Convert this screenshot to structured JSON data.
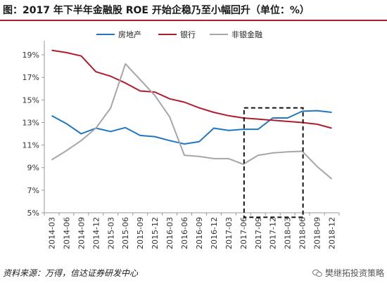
{
  "title": "图：2017 年下半年金融股 ROE 开始企稳乃至小幅回升（单位：%）",
  "source": "资料来源：万得，信达证券研发中心",
  "watermark": "樊继拓投资策略",
  "chart_data": {
    "type": "line",
    "title": "图：2017 年下半年金融股 ROE 开始企稳乃至小幅回升（单位：%）",
    "xlabel": "",
    "ylabel": "",
    "ylim": [
      5,
      20
    ],
    "yticks": [
      5,
      7,
      9,
      11,
      13,
      15,
      17,
      19
    ],
    "ytick_labels": [
      "5%",
      "7%",
      "9%",
      "11%",
      "13%",
      "15%",
      "17%",
      "19%"
    ],
    "categories": [
      "2014-03",
      "2014-06",
      "2014-09",
      "2014-12",
      "2015-03",
      "2015-06",
      "2015-09",
      "2015-12",
      "2016-03",
      "2016-06",
      "2016-09",
      "2016-12",
      "2017-03",
      "2017-06",
      "2017-09",
      "2017-12",
      "2018-03",
      "2018-06",
      "2018-09",
      "2018-12"
    ],
    "series": [
      {
        "name": "房地产",
        "color": "#1f77c4",
        "values": [
          13.6,
          12.9,
          12.0,
          12.5,
          12.2,
          12.55,
          11.85,
          11.75,
          11.4,
          11.1,
          11.3,
          12.5,
          12.3,
          12.4,
          12.4,
          13.4,
          13.4,
          14.0,
          14.05,
          13.9
        ]
      },
      {
        "name": "银行",
        "color": "#b01c2e",
        "values": [
          19.4,
          19.2,
          18.9,
          17.5,
          17.1,
          16.5,
          15.8,
          15.7,
          15.1,
          14.8,
          14.3,
          13.9,
          13.6,
          13.4,
          13.3,
          13.2,
          13.1,
          13.0,
          12.85,
          12.5
        ]
      },
      {
        "name": "非银金融",
        "color": "#a6a6a6",
        "values": [
          9.7,
          10.5,
          11.4,
          12.5,
          14.3,
          18.2,
          16.8,
          15.4,
          13.5,
          10.1,
          10.0,
          9.8,
          9.8,
          9.3,
          10.1,
          10.3,
          10.4,
          10.45,
          9.1,
          8.0
        ]
      }
    ],
    "highlight": {
      "from": "2017-06",
      "to": "2018-06",
      "ymin": 4.6,
      "ymax": 14.3,
      "style": "dashed"
    },
    "legend": "top",
    "grid": false
  }
}
